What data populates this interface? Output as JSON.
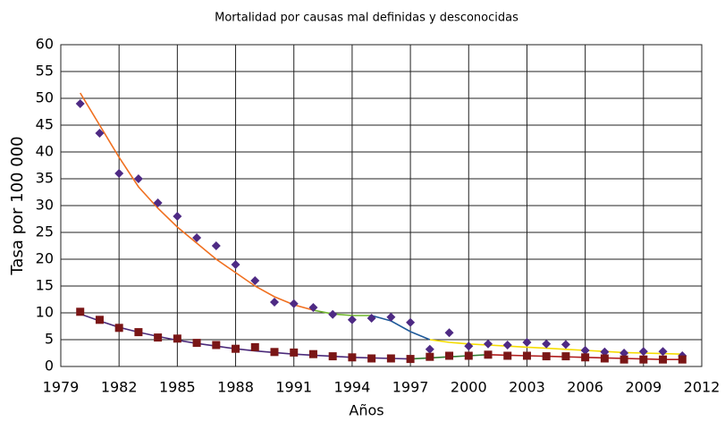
{
  "chart_data": {
    "type": "scatter",
    "title": "Mortalidad por causas mal definidas y desconocidas",
    "xlabel": "Años",
    "ylabel": "Tasa por 100 000",
    "xlim": [
      1979,
      2012
    ],
    "xticks": [
      1979,
      1982,
      1985,
      1988,
      1991,
      1994,
      1997,
      2000,
      2003,
      2006,
      2009,
      2012
    ],
    "ylim": [
      0,
      60
    ],
    "yticks": [
      0,
      5,
      10,
      15,
      20,
      25,
      30,
      35,
      40,
      45,
      50,
      55,
      60
    ],
    "grid": true,
    "series": [
      {
        "marker": "diamond",
        "color": "#4e2a84",
        "x": [
          1980,
          1981,
          1982,
          1983,
          1984,
          1985,
          1986,
          1987,
          1988,
          1989,
          1990,
          1991,
          1992,
          1993,
          1994,
          1995,
          1996,
          1997,
          1998,
          1999,
          2000,
          2001,
          2002,
          2003,
          2004,
          2005,
          2006,
          2007,
          2008,
          2009,
          2010,
          2011
        ],
        "values": [
          49,
          43.5,
          36,
          35,
          30.5,
          28,
          24,
          22.5,
          19,
          16,
          12,
          11.7,
          11,
          9.7,
          8.7,
          9,
          9.2,
          8.2,
          3.2,
          6.3,
          3.8,
          4.2,
          4,
          4.5,
          4.2,
          4.1,
          3,
          2.7,
          2.5,
          2.8,
          2.8,
          2
        ]
      },
      {
        "marker": "square",
        "color": "#7a1616",
        "x": [
          1980,
          1981,
          1982,
          1983,
          1984,
          1985,
          1986,
          1987,
          1988,
          1989,
          1990,
          1991,
          1992,
          1993,
          1994,
          1995,
          1996,
          1997,
          1998,
          1999,
          2000,
          2001,
          2002,
          2003,
          2004,
          2005,
          2006,
          2007,
          2008,
          2009,
          2010,
          2011
        ],
        "values": [
          10.2,
          8.7,
          7.2,
          6.4,
          5.4,
          5.2,
          4.4,
          4,
          3.3,
          3.6,
          2.7,
          2.6,
          2.3,
          1.9,
          1.7,
          1.5,
          1.5,
          1.4,
          1.8,
          2,
          2,
          2.2,
          2,
          2,
          1.9,
          1.9,
          1.7,
          1.5,
          1.3,
          1.3,
          1.3,
          1.3
        ]
      },
      {
        "color": "#f07020",
        "x": [
          1980,
          1981,
          1982,
          1983,
          1984,
          1985,
          1986,
          1987,
          1988,
          1989,
          1990,
          1991,
          1992
        ],
        "values": [
          51,
          45,
          39,
          33.5,
          29.5,
          26,
          23,
          20,
          17.5,
          15,
          13,
          11.5,
          10.5
        ]
      },
      {
        "color": "#6fb52c",
        "x": [
          1992,
          1993,
          1994,
          1995
        ],
        "values": [
          10.5,
          9.8,
          9.5,
          9.5
        ]
      },
      {
        "color": "#1f5a9a",
        "x": [
          1995,
          1996,
          1997,
          1998
        ],
        "values": [
          9.5,
          8.5,
          6.5,
          5
        ]
      },
      {
        "color": "#f5dc00",
        "x": [
          1998,
          1999,
          2000,
          2001,
          2002,
          2003,
          2004,
          2005,
          2006,
          2007,
          2008,
          2009,
          2010,
          2011
        ],
        "values": [
          5,
          4.5,
          4.2,
          4,
          3.8,
          3.6,
          3.4,
          3.2,
          3,
          2.8,
          2.6,
          2.5,
          2.4,
          2.3
        ]
      },
      {
        "color": "#4b2a7a",
        "x": [
          1980,
          1981,
          1982,
          1983,
          1984,
          1985,
          1986,
          1987,
          1988,
          1989,
          1990,
          1991,
          1992,
          1993,
          1994,
          1995,
          1996,
          1997
        ],
        "values": [
          9.8,
          8.5,
          7.3,
          6.4,
          5.6,
          4.9,
          4.3,
          3.8,
          3.3,
          2.9,
          2.6,
          2.3,
          2.1,
          1.9,
          1.7,
          1.6,
          1.5,
          1.4
        ]
      },
      {
        "color": "#2f7a2f",
        "x": [
          1997,
          1998,
          1999,
          2000,
          2001
        ],
        "values": [
          1.4,
          1.6,
          1.8,
          2,
          2.2
        ]
      },
      {
        "color": "#b01c1c",
        "x": [
          2001,
          2002,
          2003,
          2004,
          2005,
          2006,
          2007,
          2008,
          2009,
          2010,
          2011
        ],
        "values": [
          2.2,
          2.1,
          2,
          1.9,
          1.8,
          1.7,
          1.6,
          1.5,
          1.4,
          1.3,
          1.3
        ]
      }
    ]
  }
}
